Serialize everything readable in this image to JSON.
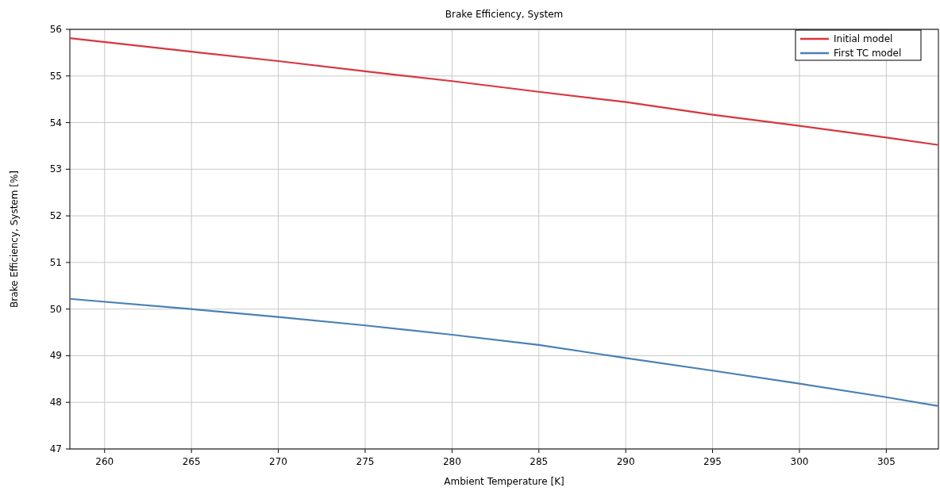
{
  "chart_data": {
    "type": "line",
    "title": "Brake Efficiency, System",
    "xlabel": "Ambient Temperature [K]",
    "ylabel": "Brake Efficiency, System [%]",
    "x": [
      258,
      265,
      270,
      275,
      280,
      285,
      290,
      295,
      300,
      305,
      308
    ],
    "series": [
      {
        "name": "Initial model",
        "color": "#d9363e",
        "values": [
          55.81,
          55.52,
          55.32,
          55.1,
          54.89,
          54.66,
          54.44,
          54.17,
          53.93,
          53.68,
          53.52
        ]
      },
      {
        "name": "First TC model",
        "color": "#4a80b4",
        "values": [
          50.22,
          50.0,
          49.83,
          49.65,
          49.45,
          49.23,
          48.95,
          48.68,
          48.4,
          48.11,
          47.92
        ]
      }
    ],
    "xlim": [
      258,
      308
    ],
    "xticks": [
      260,
      265,
      270,
      275,
      280,
      285,
      290,
      295,
      300,
      305
    ],
    "ylim": [
      47,
      56
    ],
    "yticks": [
      47,
      48,
      49,
      50,
      51,
      52,
      53,
      54,
      55,
      56
    ],
    "grid": true,
    "legend": "top right",
    "marker": "none",
    "line_style": "solid"
  }
}
